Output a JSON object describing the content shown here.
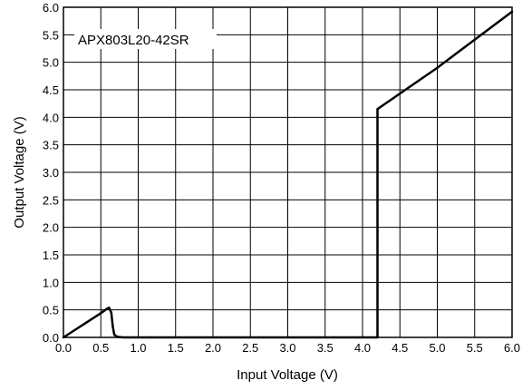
{
  "chart_data": {
    "type": "line",
    "title": "",
    "xlabel": "Input Voltage (V)",
    "ylabel": "Output Voltage (V)",
    "xlim": [
      0.0,
      6.0
    ],
    "ylim": [
      0.0,
      6.0
    ],
    "grid": true,
    "x_ticks": [
      "0.0",
      "0.5",
      "1.0",
      "1.5",
      "2.0",
      "2.5",
      "3.0",
      "3.5",
      "4.0",
      "4.5",
      "5.0",
      "5.5",
      "6.0"
    ],
    "y_ticks": [
      "0.0",
      "0.5",
      "1.0",
      "1.5",
      "2.0",
      "2.5",
      "3.0",
      "3.5",
      "4.0",
      "4.5",
      "5.0",
      "5.5",
      "6.0"
    ],
    "annotation": "APX803L20-42SR",
    "series": [
      {
        "color": "#000000",
        "x": [
          0.0,
          0.5,
          0.58,
          0.61,
          0.64,
          0.66,
          0.68,
          0.72,
          0.8,
          1.0,
          2.0,
          3.0,
          4.0,
          4.2,
          4.2,
          5.0,
          6.0
        ],
        "y": [
          0.0,
          0.44,
          0.52,
          0.54,
          0.45,
          0.2,
          0.05,
          0.01,
          0.0,
          0.0,
          0.0,
          0.0,
          0.0,
          0.0,
          4.15,
          4.9,
          5.92
        ]
      }
    ]
  }
}
